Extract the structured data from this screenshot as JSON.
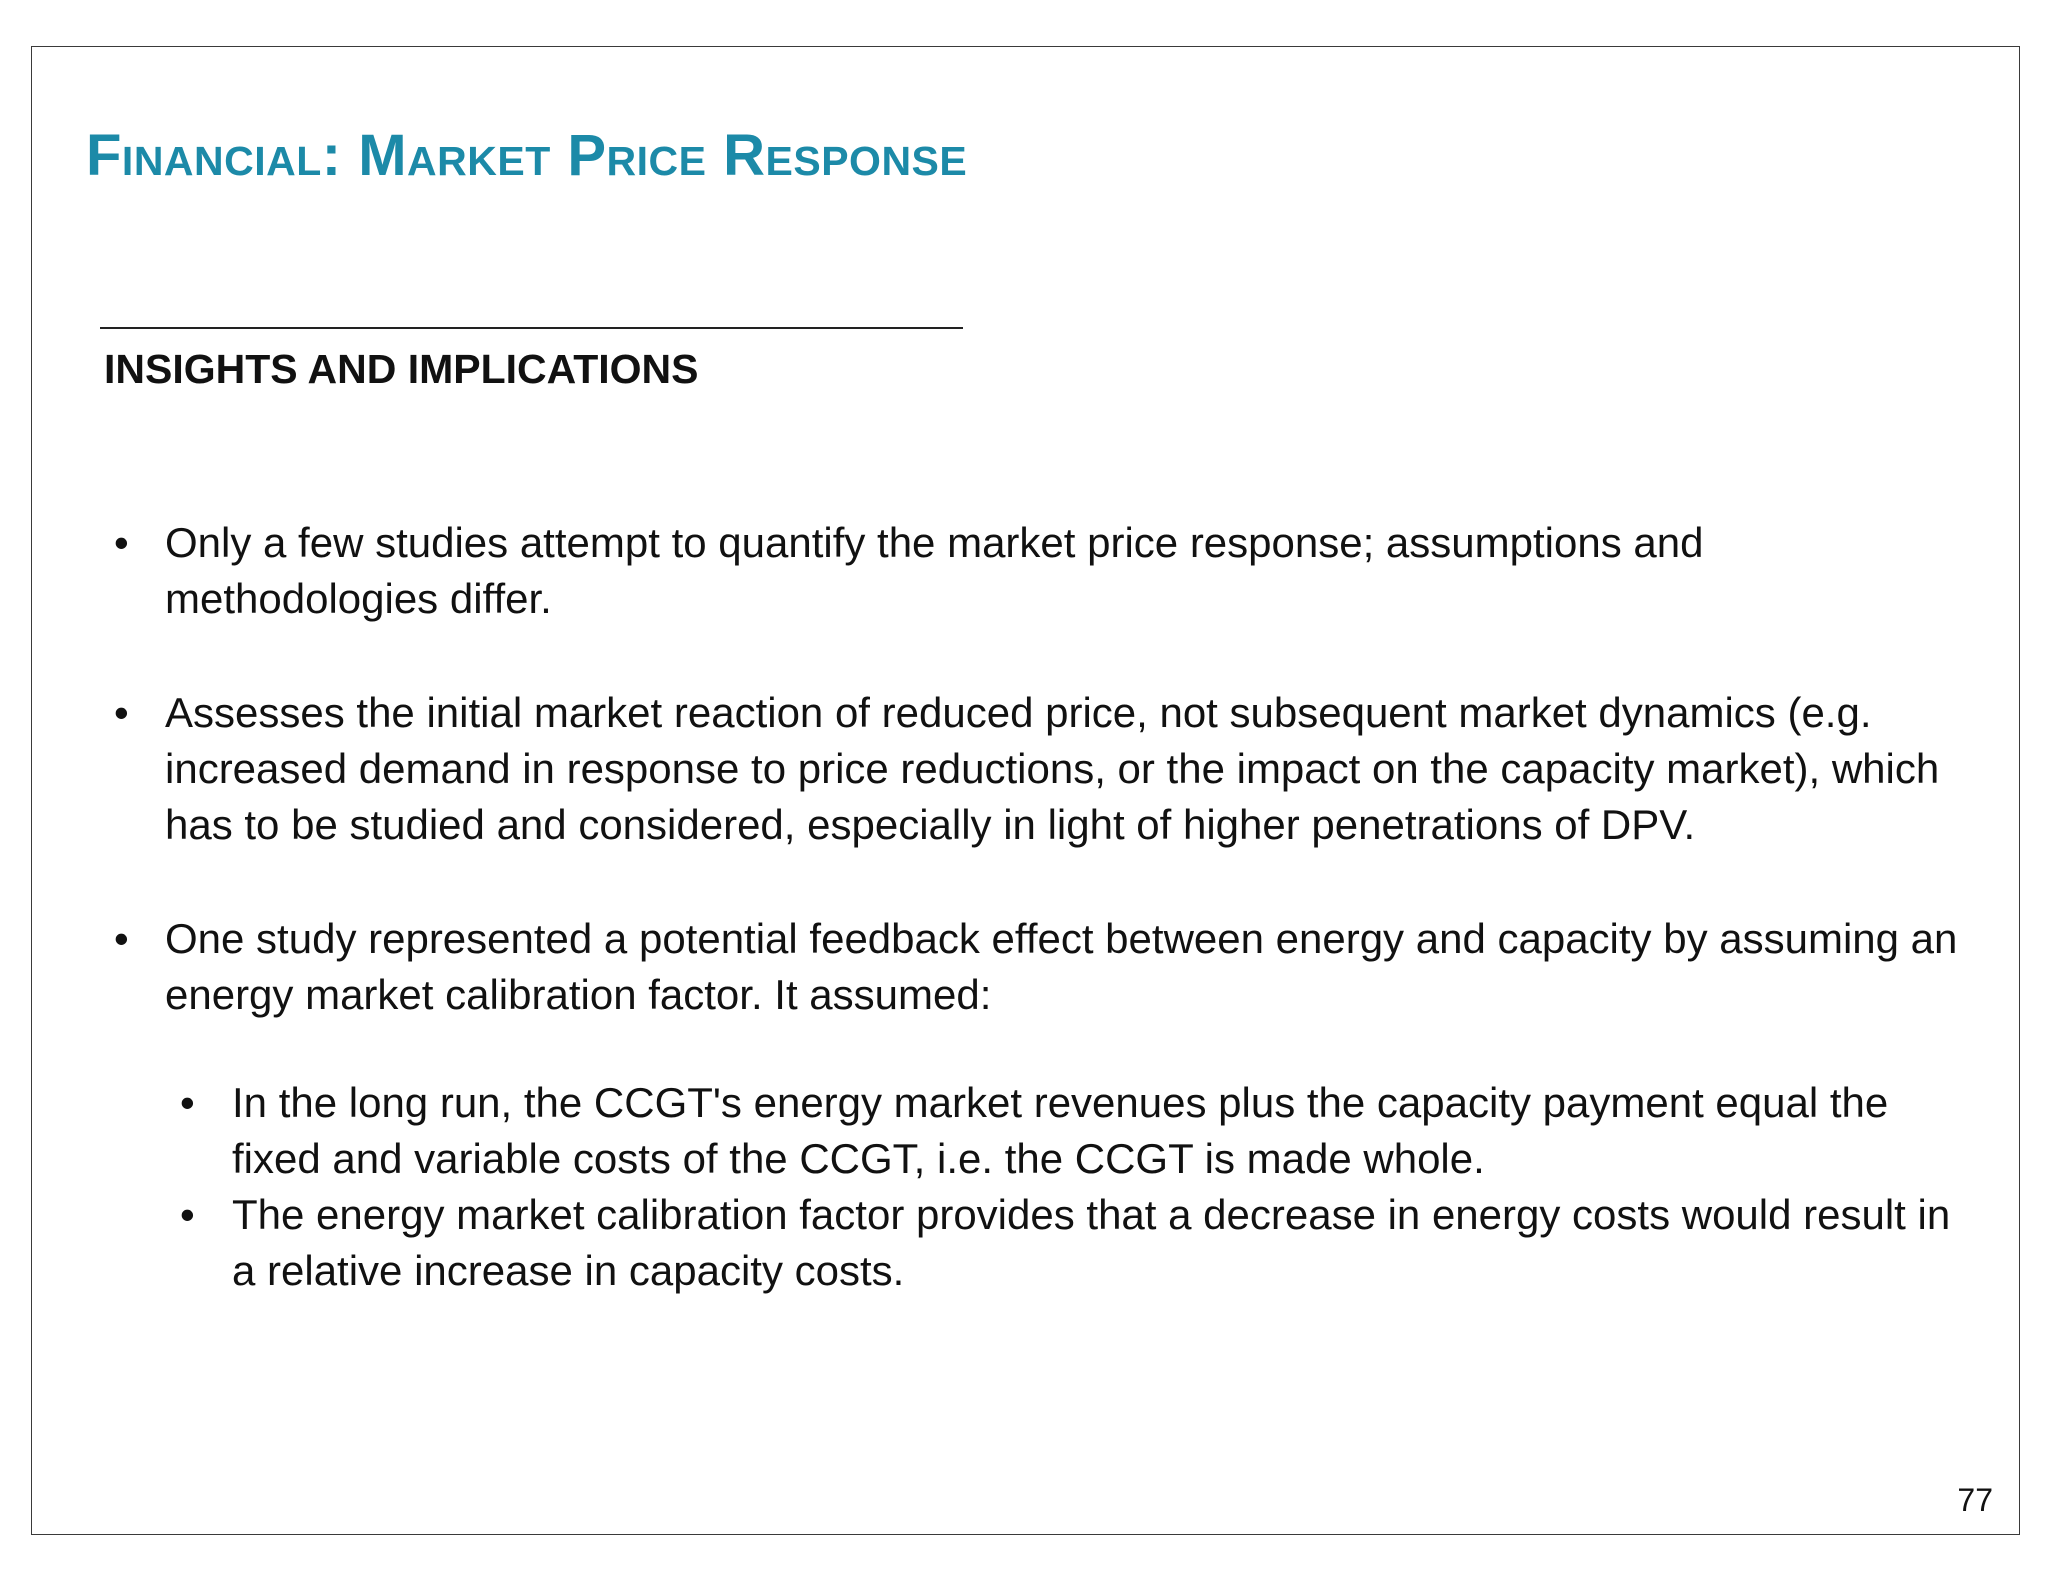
{
  "slide": {
    "title": "Financial:  Market Price Response",
    "section_heading": "INSIGHTS AND IMPLICATIONS",
    "bullets": [
      {
        "text": "Only a few studies attempt to quantify the market price response; assumptions and methodologies differ."
      },
      {
        "text": "Assesses the initial market reaction of reduced price, not subsequent market dynamics (e.g. increased demand in response to price reductions, or the impact on the capacity market), which has to be studied and considered, especially in light of higher penetrations of DPV."
      },
      {
        "text": "One study represented a potential feedback effect between energy and capacity by assuming an energy market calibration factor. It assumed:",
        "sub_bullets": [
          "In the long run, the CCGT's energy market revenues plus the capacity payment equal the fixed and variable costs of the CCGT, i.e. the CCGT is made whole.",
          "The energy market calibration factor provides that a decrease in energy costs would result in a relative increase in capacity costs."
        ]
      }
    ],
    "bullet_glyph": "•",
    "page_number": "77"
  }
}
